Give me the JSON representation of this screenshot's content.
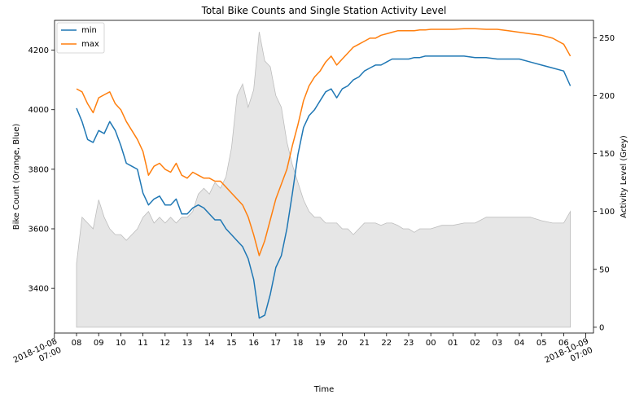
{
  "chart_data": {
    "type": "line",
    "title": "Total Bike Counts and Single Station Activity Level",
    "xlabel": "Time",
    "ylabel_left": "Bike Count (Orange, Blue)",
    "ylabel_right": "Activity Level (Grey)",
    "ylim_left": [
      3250,
      4300
    ],
    "ylim_right": [
      -5,
      265
    ],
    "left_ticks": [
      3400,
      3600,
      3800,
      4000,
      4200
    ],
    "right_ticks": [
      0,
      50,
      100,
      150,
      200,
      250
    ],
    "x_hour_ticks": [
      "08",
      "09",
      "10",
      "11",
      "12",
      "13",
      "14",
      "15",
      "16",
      "17",
      "18",
      "19",
      "20",
      "21",
      "22",
      "23",
      "00",
      "01",
      "02",
      "03",
      "04",
      "05",
      "06"
    ],
    "x_major_ticks": [
      {
        "hour": -1,
        "line1": "2018-10-08",
        "line2": "07:00"
      },
      {
        "hour": 23,
        "line1": "2018-10-09",
        "line2": "07:00"
      }
    ],
    "legend": {
      "position": "top-left",
      "entries": [
        "min",
        "max"
      ]
    },
    "colors": {
      "min": "#1f77b4",
      "max": "#ff7f0e",
      "activity": "#bdbdbd"
    },
    "hours": [
      0,
      0.25,
      0.5,
      0.75,
      1,
      1.25,
      1.5,
      1.75,
      2,
      2.25,
      2.5,
      2.75,
      3,
      3.25,
      3.5,
      3.75,
      4,
      4.25,
      4.5,
      4.75,
      5,
      5.25,
      5.5,
      5.75,
      6,
      6.25,
      6.5,
      6.75,
      7,
      7.25,
      7.5,
      7.75,
      8,
      8.25,
      8.5,
      8.75,
      9,
      9.25,
      9.5,
      9.75,
      10,
      10.25,
      10.5,
      10.75,
      11,
      11.25,
      11.5,
      11.75,
      12,
      12.25,
      12.5,
      12.75,
      13,
      13.25,
      13.5,
      13.75,
      14,
      14.25,
      14.5,
      14.75,
      15,
      15.25,
      15.5,
      15.75,
      16,
      16.5,
      17,
      17.5,
      18,
      18.5,
      19,
      19.5,
      20,
      20.5,
      21,
      21.5,
      22,
      22.3
    ],
    "series": [
      {
        "name": "min",
        "values": [
          4005,
          3960,
          3900,
          3890,
          3930,
          3920,
          3960,
          3930,
          3880,
          3820,
          3810,
          3800,
          3720,
          3680,
          3700,
          3710,
          3680,
          3680,
          3700,
          3650,
          3650,
          3670,
          3680,
          3670,
          3650,
          3630,
          3630,
          3600,
          3580,
          3560,
          3540,
          3500,
          3430,
          3300,
          3310,
          3380,
          3470,
          3510,
          3600,
          3720,
          3850,
          3940,
          3980,
          4000,
          4030,
          4060,
          4070,
          4040,
          4070,
          4080,
          4100,
          4110,
          4130,
          4140,
          4150,
          4150,
          4160,
          4170,
          4170,
          4170,
          4170,
          4175,
          4175,
          4180,
          4180,
          4180,
          4180,
          4180,
          4175,
          4175,
          4170,
          4170,
          4170,
          4160,
          4150,
          4140,
          4130,
          4080
        ]
      },
      {
        "name": "max",
        "values": [
          4070,
          4060,
          4020,
          3990,
          4040,
          4050,
          4060,
          4020,
          4000,
          3960,
          3930,
          3900,
          3860,
          3780,
          3810,
          3820,
          3800,
          3790,
          3820,
          3780,
          3770,
          3790,
          3780,
          3770,
          3770,
          3760,
          3760,
          3740,
          3720,
          3700,
          3680,
          3640,
          3580,
          3510,
          3560,
          3630,
          3700,
          3750,
          3800,
          3880,
          3950,
          4030,
          4080,
          4110,
          4130,
          4160,
          4180,
          4150,
          4170,
          4190,
          4210,
          4220,
          4230,
          4240,
          4240,
          4250,
          4255,
          4260,
          4265,
          4265,
          4265,
          4265,
          4268,
          4268,
          4270,
          4270,
          4270,
          4272,
          4272,
          4270,
          4270,
          4265,
          4260,
          4255,
          4250,
          4240,
          4220,
          4180
        ]
      },
      {
        "name": "activity",
        "values": [
          55,
          95,
          90,
          85,
          110,
          95,
          85,
          80,
          80,
          75,
          80,
          85,
          95,
          100,
          90,
          95,
          90,
          95,
          90,
          95,
          95,
          100,
          115,
          120,
          115,
          125,
          120,
          130,
          155,
          200,
          210,
          190,
          205,
          255,
          230,
          225,
          200,
          190,
          160,
          140,
          125,
          110,
          100,
          95,
          95,
          90,
          90,
          90,
          85,
          85,
          80,
          85,
          90,
          90,
          90,
          88,
          90,
          90,
          88,
          85,
          85,
          82,
          85,
          85,
          85,
          88,
          88,
          90,
          90,
          95,
          95,
          95,
          95,
          95,
          92,
          90,
          90,
          100
        ]
      }
    ]
  }
}
